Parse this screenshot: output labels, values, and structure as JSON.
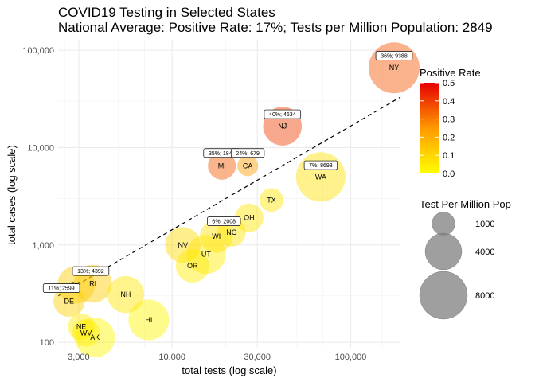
{
  "chart_data": {
    "type": "scatter",
    "title": "COVID19 Testing in Selected States",
    "subtitle": "National Average: Positive Rate: 17%; Tests per Million Population: 2849",
    "xlabel": "total tests (log scale)",
    "ylabel": "total cases (log scale)",
    "x_scale": "log",
    "y_scale": "log",
    "xlim": [
      2300,
      190000
    ],
    "ylim": [
      88,
      128000
    ],
    "x_ticks": [
      3000,
      10000,
      30000,
      100000
    ],
    "x_tick_labels": [
      "3,000",
      "10,000",
      "30,000",
      "100,000"
    ],
    "y_ticks": [
      100,
      1000,
      10000,
      100000
    ],
    "y_tick_labels": [
      "100",
      "1,000",
      "10,000",
      "100,000"
    ],
    "grid": true,
    "reference_line": {
      "style": "dashed",
      "from": [
        2300,
        300
      ],
      "to": [
        190000,
        33000
      ]
    },
    "points": [
      {
        "state": "NY",
        "tests": 175000,
        "cases": 66000,
        "positive_rate": 0.36,
        "tests_per_million": 9388
      },
      {
        "state": "NJ",
        "tests": 41500,
        "cases": 16600,
        "positive_rate": 0.4,
        "tests_per_million": 4634
      },
      {
        "state": "MI",
        "tests": 19000,
        "cases": 6500,
        "positive_rate": 0.35,
        "tests_per_million": 1841
      },
      {
        "state": "CA",
        "tests": 26500,
        "cases": 6500,
        "positive_rate": 0.24,
        "tests_per_million": 679
      },
      {
        "state": "WA",
        "tests": 68000,
        "cases": 5000,
        "positive_rate": 0.07,
        "tests_per_million": 8693
      },
      {
        "state": "TX",
        "tests": 36000,
        "cases": 2900,
        "positive_rate": 0.06,
        "tests_per_million": 1100
      },
      {
        "state": "OH",
        "tests": 27000,
        "cases": 1900,
        "positive_rate": 0.06,
        "tests_per_million": 2008
      },
      {
        "state": "NC",
        "tests": 21500,
        "cases": 1350,
        "positive_rate": 0.06,
        "tests_per_million": 2000
      },
      {
        "state": "WI",
        "tests": 17700,
        "cases": 1230,
        "positive_rate": 0.07,
        "tests_per_million": 3000
      },
      {
        "state": "NV",
        "tests": 11500,
        "cases": 1000,
        "positive_rate": 0.09,
        "tests_per_million": 3700
      },
      {
        "state": "UT",
        "tests": 15500,
        "cases": 800,
        "positive_rate": 0.05,
        "tests_per_million": 4800
      },
      {
        "state": "OR",
        "tests": 13000,
        "cases": 610,
        "positive_rate": 0.05,
        "tests_per_million": 3100
      },
      {
        "state": "DC",
        "tests": 2900,
        "cases": 390,
        "positive_rate": 0.13,
        "tests_per_million": 4300
      },
      {
        "state": "RI",
        "tests": 3600,
        "cases": 400,
        "positive_rate": 0.13,
        "tests_per_million": 4392
      },
      {
        "state": "DE",
        "tests": 2650,
        "cases": 265,
        "positive_rate": 0.11,
        "tests_per_million": 2599
      },
      {
        "state": "NH",
        "tests": 5500,
        "cases": 310,
        "positive_rate": 0.06,
        "tests_per_million": 4100
      },
      {
        "state": "HI",
        "tests": 7400,
        "cases": 170,
        "positive_rate": 0.03,
        "tests_per_million": 5300
      },
      {
        "state": "NE",
        "tests": 3100,
        "cases": 145,
        "positive_rate": 0.05,
        "tests_per_million": 1600
      },
      {
        "state": "WV",
        "tests": 3300,
        "cases": 125,
        "positive_rate": 0.04,
        "tests_per_million": 1800
      },
      {
        "state": "AK",
        "tests": 3700,
        "cases": 112,
        "positive_rate": 0.03,
        "tests_per_million": 5000
      }
    ],
    "annotations": [
      {
        "text": "36%; 9388",
        "x": 175000,
        "y": 88000
      },
      {
        "text": "40%; 4634",
        "x": 41500,
        "y": 22000
      },
      {
        "text": "35%; 1841",
        "x": 19000,
        "y": 8800
      },
      {
        "text": "24%; 679",
        "x": 26500,
        "y": 8800
      },
      {
        "text": "7%; 8693",
        "x": 68000,
        "y": 6600
      },
      {
        "text": "6%; 2008",
        "x": 19500,
        "y": 1750
      },
      {
        "text": "13%; 4392",
        "x": 3500,
        "y": 540
      },
      {
        "text": "11%; 2599",
        "x": 2400,
        "y": 360
      }
    ],
    "color_legend": {
      "title": "Positive Rate",
      "range": [
        0,
        0.5
      ],
      "ticks": [
        0.0,
        0.1,
        0.2,
        0.3,
        0.4,
        0.5
      ],
      "tick_labels": [
        "0.0",
        "0.1",
        "0.2",
        "0.3",
        "0.4",
        "0.5"
      ],
      "low_color": "#ffff00",
      "high_color": "#e60000"
    },
    "size_legend": {
      "title": "Test Per Million Pop",
      "entries": [
        1000,
        4000,
        8000
      ],
      "entry_labels": [
        "1000",
        "4000",
        "8000"
      ]
    },
    "legend_position": "right"
  }
}
